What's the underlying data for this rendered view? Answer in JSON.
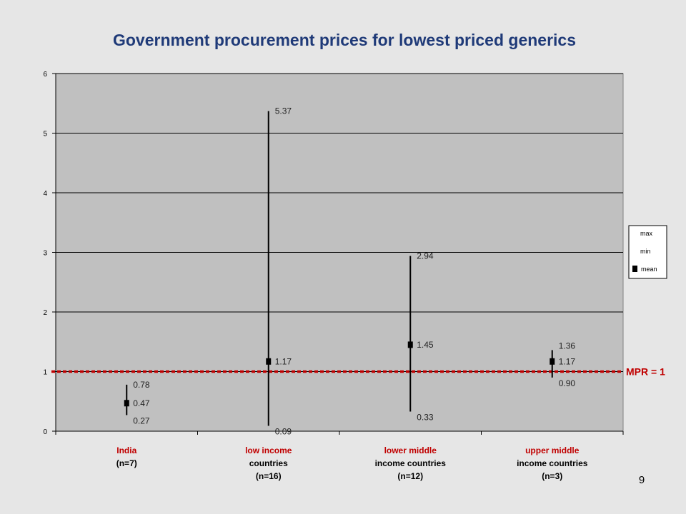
{
  "page_number": "9",
  "chart_data": {
    "type": "scatter",
    "title": "Government procurement prices for lowest priced generics",
    "ylim": [
      0,
      6
    ],
    "yticks": [
      "0",
      "1",
      "2",
      "3",
      "4",
      "5",
      "6"
    ],
    "grid": true,
    "categories": [
      {
        "name": "India",
        "sub": [
          "(n=7)"
        ]
      },
      {
        "name": "low income",
        "sub": [
          "countries",
          "(n=16)"
        ]
      },
      {
        "name": "lower middle",
        "sub": [
          "income countries",
          "(n=12)"
        ]
      },
      {
        "name": "upper middle",
        "sub": [
          "income countries",
          "(n=3)"
        ]
      }
    ],
    "series": [
      {
        "name": "max",
        "values": [
          0.78,
          5.37,
          2.94,
          1.36
        ],
        "labels": [
          "0.78",
          "5.37",
          "2.94",
          "1.36"
        ]
      },
      {
        "name": "min",
        "values": [
          0.27,
          0.09,
          0.33,
          0.9
        ],
        "labels": [
          "0.27",
          "0.09",
          "0.33",
          "0.90"
        ]
      },
      {
        "name": "mean",
        "values": [
          0.47,
          1.17,
          1.45,
          1.17
        ],
        "labels": [
          "0.47",
          "1.17",
          "1.45",
          "1.17"
        ]
      }
    ],
    "legend": {
      "position": "right",
      "items": [
        "max",
        "min",
        "mean"
      ]
    },
    "reference_line": {
      "value": 1,
      "label": "MPR = 1",
      "color": "#c00000"
    },
    "colors": {
      "plot_bg": "#c0c0c0",
      "page_bg": "#e6e6e6",
      "title": "#1f3a78",
      "category_label": "#c00000"
    }
  }
}
